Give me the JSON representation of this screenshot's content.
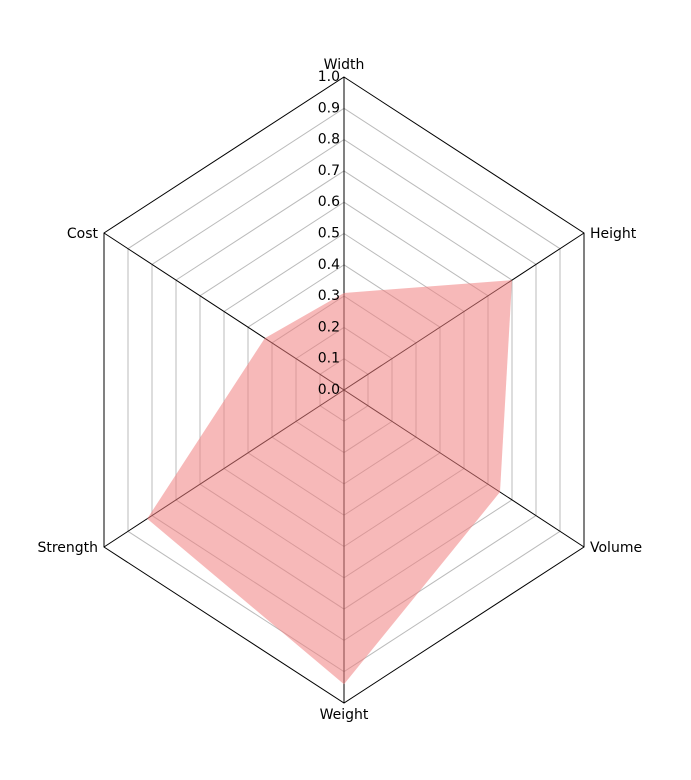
{
  "chart_data": {
    "type": "radar",
    "categories": [
      "Width",
      "Height",
      "Volume",
      "Weight",
      "Strength",
      "Cost"
    ],
    "values": [
      0.31,
      0.7,
      0.65,
      0.94,
      0.82,
      0.33
    ],
    "color": "#f08080",
    "ylim": [
      0,
      1
    ],
    "yticks": [
      {
        "value": 0,
        "label": "0.0"
      },
      {
        "value": 0.1,
        "label": "0.1"
      },
      {
        "value": 0.2,
        "label": "0.2"
      },
      {
        "value": 0.3,
        "label": "0.3"
      },
      {
        "value": 0.4,
        "label": "0.4"
      },
      {
        "value": 0.5,
        "label": "0.5"
      },
      {
        "value": 0.6,
        "label": "0.6"
      },
      {
        "value": 0.7,
        "label": "0.7"
      },
      {
        "value": 0.8,
        "label": "0.8"
      },
      {
        "value": 0.9,
        "label": "0.9"
      },
      {
        "value": 1,
        "label": "1.0"
      }
    ],
    "grid": true
  }
}
